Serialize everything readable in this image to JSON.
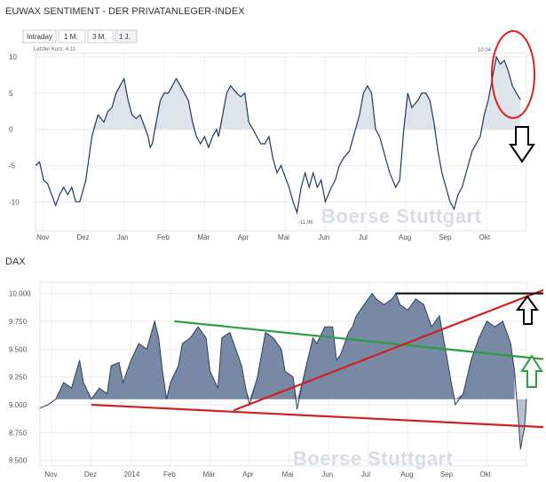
{
  "chart_data": [
    {
      "type": "area",
      "title": "EUWAX SENTIMENT - DER PRIVATANLEGER-INDEX",
      "tabs": [
        {
          "label": "Intraday",
          "active": false
        },
        {
          "label": "1 M.",
          "active": false
        },
        {
          "label": "3 M.",
          "active": false
        },
        {
          "label": "1 J.",
          "active": true
        }
      ],
      "last_price_label": "Letzter Kurs: 4,11",
      "max_label": "10,04",
      "min_label": "-11,96",
      "watermark": "Boerse Stuttgart",
      "ylim": [
        -14,
        10.5
      ],
      "yticks": [
        {
          "v": 10,
          "label": "10"
        },
        {
          "v": 5,
          "label": "5"
        },
        {
          "v": 0,
          "label": "0"
        },
        {
          "v": -5,
          "label": "-5"
        },
        {
          "v": -10,
          "label": "-10"
        }
      ],
      "xlim": [
        0,
        12.2
      ],
      "xticks": [
        {
          "v": 0.2,
          "label": "Nov"
        },
        {
          "v": 1.2,
          "label": "Dez"
        },
        {
          "v": 2.2,
          "label": "Jan"
        },
        {
          "v": 3.2,
          "label": "Feb"
        },
        {
          "v": 4.2,
          "label": "Mär"
        },
        {
          "v": 5.2,
          "label": "Apr"
        },
        {
          "v": 6.2,
          "label": "Mai"
        },
        {
          "v": 7.2,
          "label": "Jun"
        },
        {
          "v": 8.2,
          "label": "Jul"
        },
        {
          "v": 9.2,
          "label": "Aug"
        },
        {
          "v": 10.2,
          "label": "Sep"
        },
        {
          "v": 11.2,
          "label": "Okt"
        }
      ],
      "series": [
        {
          "values": [
            [
              0,
              -5
            ],
            [
              0.1,
              -4.5
            ],
            [
              0.2,
              -7
            ],
            [
              0.3,
              -7.5
            ],
            [
              0.4,
              -9
            ],
            [
              0.5,
              -10.5
            ],
            [
              0.6,
              -9
            ],
            [
              0.7,
              -8
            ],
            [
              0.8,
              -9
            ],
            [
              0.9,
              -8
            ],
            [
              1.0,
              -10
            ],
            [
              1.1,
              -10
            ],
            [
              1.25,
              -7
            ],
            [
              1.4,
              -1
            ],
            [
              1.55,
              2
            ],
            [
              1.7,
              1
            ],
            [
              1.8,
              2.5
            ],
            [
              1.9,
              3
            ],
            [
              2.0,
              5
            ],
            [
              2.1,
              6
            ],
            [
              2.2,
              7
            ],
            [
              2.3,
              4
            ],
            [
              2.4,
              2
            ],
            [
              2.5,
              1.5
            ],
            [
              2.6,
              2
            ],
            [
              2.7,
              0.5
            ],
            [
              2.8,
              -1
            ],
            [
              2.85,
              -2.5
            ],
            [
              2.9,
              -2
            ],
            [
              3.0,
              1
            ],
            [
              3.1,
              4
            ],
            [
              3.2,
              5
            ],
            [
              3.3,
              5
            ],
            [
              3.4,
              6
            ],
            [
              3.5,
              7
            ],
            [
              3.6,
              6
            ],
            [
              3.7,
              5
            ],
            [
              3.8,
              4
            ],
            [
              3.9,
              1
            ],
            [
              4.0,
              -1
            ],
            [
              4.1,
              -2
            ],
            [
              4.2,
              -1
            ],
            [
              4.3,
              -2.5
            ],
            [
              4.4,
              -1
            ],
            [
              4.5,
              0
            ],
            [
              4.55,
              -1
            ],
            [
              4.65,
              2
            ],
            [
              4.75,
              5
            ],
            [
              4.85,
              6
            ],
            [
              5.0,
              5
            ],
            [
              5.1,
              4.5
            ],
            [
              5.2,
              5
            ],
            [
              5.3,
              1
            ],
            [
              5.4,
              0
            ],
            [
              5.5,
              -1
            ],
            [
              5.6,
              -2
            ],
            [
              5.7,
              -2
            ],
            [
              5.8,
              -1
            ],
            [
              5.9,
              -4
            ],
            [
              6.0,
              -6
            ],
            [
              6.1,
              -5
            ],
            [
              6.2,
              -6.5
            ],
            [
              6.3,
              -8
            ],
            [
              6.4,
              -10
            ],
            [
              6.5,
              -11.5
            ],
            [
              6.6,
              -8
            ],
            [
              6.7,
              -6
            ],
            [
              6.8,
              -8
            ],
            [
              6.9,
              -6
            ],
            [
              7.0,
              -8
            ],
            [
              7.1,
              -7
            ],
            [
              7.2,
              -10
            ],
            [
              7.35,
              -8
            ],
            [
              7.45,
              -7
            ],
            [
              7.55,
              -5
            ],
            [
              7.65,
              -4
            ],
            [
              7.8,
              -3
            ],
            [
              7.95,
              0
            ],
            [
              8.05,
              2
            ],
            [
              8.15,
              5
            ],
            [
              8.25,
              6
            ],
            [
              8.35,
              5
            ],
            [
              8.45,
              0
            ],
            [
              8.55,
              -1
            ],
            [
              8.7,
              -4
            ],
            [
              8.8,
              -6
            ],
            [
              8.95,
              -8
            ],
            [
              9.05,
              -7
            ],
            [
              9.15,
              0
            ],
            [
              9.25,
              5
            ],
            [
              9.35,
              3
            ],
            [
              9.5,
              4
            ],
            [
              9.6,
              5
            ],
            [
              9.7,
              5
            ],
            [
              9.8,
              4
            ],
            [
              9.9,
              1
            ],
            [
              10.0,
              -3
            ],
            [
              10.1,
              -6
            ],
            [
              10.2,
              -8
            ],
            [
              10.3,
              -10
            ],
            [
              10.4,
              -11
            ],
            [
              10.5,
              -9
            ],
            [
              10.6,
              -8
            ],
            [
              10.7,
              -6
            ],
            [
              10.85,
              -3
            ],
            [
              10.95,
              -2
            ],
            [
              11.05,
              -1
            ],
            [
              11.15,
              2
            ],
            [
              11.25,
              4
            ],
            [
              11.35,
              7
            ],
            [
              11.45,
              10
            ],
            [
              11.55,
              9
            ],
            [
              11.65,
              9.5
            ],
            [
              11.75,
              8
            ],
            [
              11.85,
              6
            ],
            [
              11.95,
              5
            ],
            [
              12.05,
              4.11
            ]
          ]
        }
      ],
      "annotations": {
        "highlight": "ellipse",
        "arrow": "down"
      }
    },
    {
      "type": "area",
      "title": "DAX",
      "watermark": "Boerse Stuttgart",
      "ylim": [
        8450,
        10100
      ],
      "yticks": [
        {
          "v": 10000,
          "label": "10.000"
        },
        {
          "v": 9750,
          "label": "9.750"
        },
        {
          "v": 9500,
          "label": "9.500"
        },
        {
          "v": 9250,
          "label": "9.250"
        },
        {
          "v": 9000,
          "label": "9.000"
        },
        {
          "v": 8750,
          "label": "8.750"
        },
        {
          "v": 8500,
          "label": "8.500"
        }
      ],
      "xlim": [
        0,
        12.3
      ],
      "xticks": [
        {
          "v": 0.3,
          "label": "Nov"
        },
        {
          "v": 1.3,
          "label": "Dez"
        },
        {
          "v": 2.3,
          "label": "2014"
        },
        {
          "v": 3.3,
          "label": "Feb"
        },
        {
          "v": 4.3,
          "label": "Mär"
        },
        {
          "v": 5.3,
          "label": "Apr"
        },
        {
          "v": 6.3,
          "label": "Mai"
        },
        {
          "v": 7.3,
          "label": "Jun"
        },
        {
          "v": 8.3,
          "label": "Jul"
        },
        {
          "v": 9.3,
          "label": "Aug"
        },
        {
          "v": 10.3,
          "label": "Sep"
        },
        {
          "v": 11.3,
          "label": "Okt"
        }
      ],
      "baseline": 9050,
      "series": [
        {
          "values": [
            [
              0,
              8970
            ],
            [
              0.2,
              9000
            ],
            [
              0.4,
              9050
            ],
            [
              0.6,
              9200
            ],
            [
              0.8,
              9150
            ],
            [
              1.0,
              9400
            ],
            [
              1.1,
              9200
            ],
            [
              1.3,
              9050
            ],
            [
              1.5,
              9150
            ],
            [
              1.7,
              9100
            ],
            [
              1.8,
              9350
            ],
            [
              2.0,
              9380
            ],
            [
              2.1,
              9200
            ],
            [
              2.3,
              9400
            ],
            [
              2.5,
              9550
            ],
            [
              2.7,
              9500
            ],
            [
              2.9,
              9750
            ],
            [
              3.0,
              9600
            ],
            [
              3.1,
              9300
            ],
            [
              3.2,
              9050
            ],
            [
              3.3,
              9200
            ],
            [
              3.5,
              9350
            ],
            [
              3.6,
              9550
            ],
            [
              3.8,
              9600
            ],
            [
              4.0,
              9700
            ],
            [
              4.2,
              9600
            ],
            [
              4.3,
              9300
            ],
            [
              4.5,
              9150
            ],
            [
              4.6,
              9600
            ],
            [
              4.8,
              9650
            ],
            [
              5.0,
              9450
            ],
            [
              5.1,
              9350
            ],
            [
              5.2,
              9150
            ],
            [
              5.3,
              9000
            ],
            [
              5.5,
              9250
            ],
            [
              5.7,
              9650
            ],
            [
              5.9,
              9600
            ],
            [
              6.1,
              9500
            ],
            [
              6.2,
              9300
            ],
            [
              6.4,
              9250
            ],
            [
              6.5,
              8960
            ],
            [
              6.7,
              9300
            ],
            [
              6.9,
              9600
            ],
            [
              7.0,
              9550
            ],
            [
              7.2,
              9700
            ],
            [
              7.4,
              9700
            ],
            [
              7.5,
              9400
            ],
            [
              7.6,
              9450
            ],
            [
              7.7,
              9550
            ],
            [
              7.8,
              9650
            ],
            [
              7.9,
              9700
            ],
            [
              8.0,
              9800
            ],
            [
              8.2,
              9900
            ],
            [
              8.4,
              10000
            ],
            [
              8.5,
              9950
            ],
            [
              8.7,
              9900
            ],
            [
              8.9,
              9950
            ],
            [
              9.0,
              10000
            ],
            [
              9.1,
              9900
            ],
            [
              9.3,
              9850
            ],
            [
              9.5,
              9950
            ],
            [
              9.7,
              9900
            ],
            [
              9.9,
              9700
            ],
            [
              10.1,
              9800
            ],
            [
              10.3,
              9400
            ],
            [
              10.4,
              9200
            ],
            [
              10.5,
              9000
            ],
            [
              10.7,
              9100
            ],
            [
              10.9,
              9400
            ],
            [
              11.1,
              9600
            ],
            [
              11.3,
              9750
            ],
            [
              11.5,
              9700
            ],
            [
              11.7,
              9750
            ],
            [
              11.9,
              9550
            ],
            [
              12.0,
              9300
            ]
          ]
        }
      ],
      "trendlines": [
        {
          "color": "#2a9d3e",
          "from": [
            3.4,
            9750
          ],
          "to": [
            13.2,
            9410
          ]
        },
        {
          "color": "#cc2222",
          "from": [
            1.3,
            9000
          ],
          "to": [
            13.2,
            8800
          ]
        },
        {
          "color": "#cc2222",
          "from": [
            4.9,
            8950
          ],
          "to": [
            13.2,
            10030
          ]
        },
        {
          "color": "#111111",
          "from": [
            9.0,
            10000
          ],
          "to": [
            13.2,
            10000
          ]
        }
      ],
      "annotations": {
        "black_arrow": "up",
        "green_arrow": "up"
      }
    }
  ]
}
